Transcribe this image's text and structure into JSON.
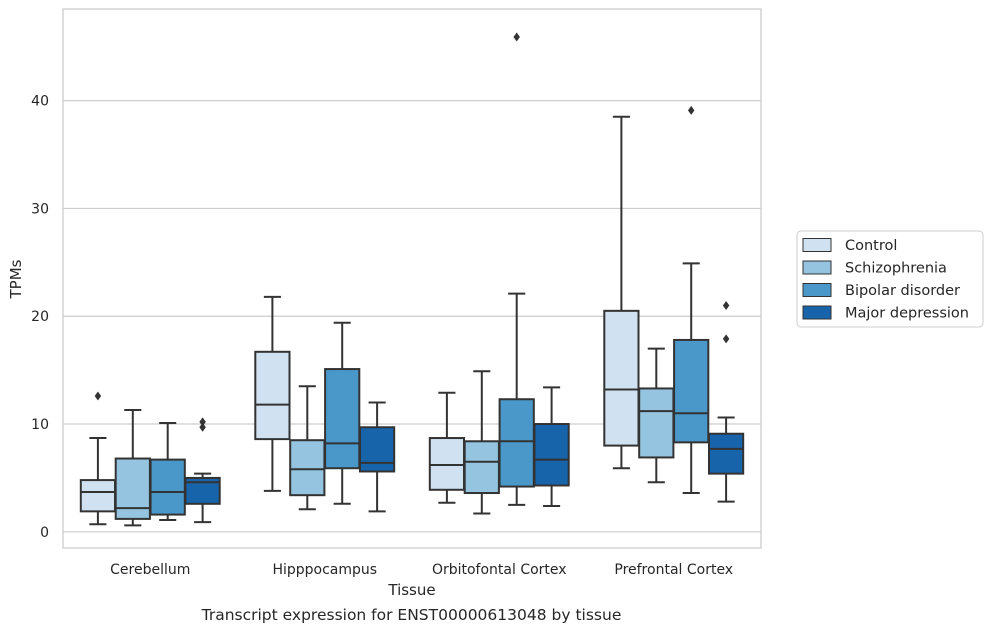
{
  "caption": "Transcript expression for ENST00000613048 by tissue",
  "colors": {
    "Control": "#d0e1f2",
    "Schizophrenia": "#94c4df",
    "Bipolar disorder": "#4a98c9",
    "Major depression": "#1764ab",
    "stroke": "#333333",
    "grid": "#cccccc"
  },
  "chart_data": {
    "type": "box",
    "xlabel": "Tissue",
    "ylabel": "TPMs",
    "ylim": [
      -1.5,
      48.5
    ],
    "yticks": [
      0,
      10,
      20,
      30,
      40
    ],
    "grid": "horizontal",
    "legend_placement": "right-outside",
    "categories": [
      "Cerebellum",
      "Hipppocampus",
      "Orbitofontal Cortex",
      "Prefrontal Cortex"
    ],
    "series": [
      {
        "name": "Control",
        "boxes": [
          {
            "whislo": 0.7,
            "q1": 1.9,
            "med": 3.7,
            "q3": 4.8,
            "whishi": 8.7,
            "fliers": [
              12.6
            ]
          },
          {
            "whislo": 3.8,
            "q1": 8.6,
            "med": 11.8,
            "q3": 16.7,
            "whishi": 21.8,
            "fliers": []
          },
          {
            "whislo": 2.7,
            "q1": 3.9,
            "med": 6.2,
            "q3": 8.7,
            "whishi": 12.9,
            "fliers": []
          },
          {
            "whislo": 5.9,
            "q1": 8.0,
            "med": 13.2,
            "q3": 20.5,
            "whishi": 38.5,
            "fliers": []
          }
        ]
      },
      {
        "name": "Schizophrenia",
        "boxes": [
          {
            "whislo": 0.6,
            "q1": 1.2,
            "med": 2.2,
            "q3": 6.8,
            "whishi": 11.3,
            "fliers": []
          },
          {
            "whislo": 2.1,
            "q1": 3.4,
            "med": 5.8,
            "q3": 8.5,
            "whishi": 13.5,
            "fliers": []
          },
          {
            "whislo": 1.7,
            "q1": 3.6,
            "med": 6.5,
            "q3": 8.4,
            "whishi": 14.9,
            "fliers": []
          },
          {
            "whislo": 4.6,
            "q1": 6.9,
            "med": 11.2,
            "q3": 13.3,
            "whishi": 17.0,
            "fliers": []
          }
        ]
      },
      {
        "name": "Bipolar disorder",
        "boxes": [
          {
            "whislo": 1.1,
            "q1": 1.6,
            "med": 3.7,
            "q3": 6.7,
            "whishi": 10.1,
            "fliers": []
          },
          {
            "whislo": 2.6,
            "q1": 5.9,
            "med": 8.2,
            "q3": 15.1,
            "whishi": 19.4,
            "fliers": []
          },
          {
            "whislo": 2.5,
            "q1": 4.2,
            "med": 8.4,
            "q3": 12.3,
            "whishi": 22.1,
            "fliers": [
              45.9
            ]
          },
          {
            "whislo": 3.6,
            "q1": 8.3,
            "med": 11.0,
            "q3": 17.8,
            "whishi": 24.9,
            "fliers": [
              39.1
            ]
          }
        ]
      },
      {
        "name": "Major depression",
        "boxes": [
          {
            "whislo": 0.9,
            "q1": 2.6,
            "med": 4.6,
            "q3": 5.0,
            "whishi": 5.4,
            "fliers": [
              9.7,
              10.2
            ]
          },
          {
            "whislo": 1.9,
            "q1": 5.6,
            "med": 6.4,
            "q3": 9.7,
            "whishi": 12.0,
            "fliers": []
          },
          {
            "whislo": 2.4,
            "q1": 4.3,
            "med": 6.7,
            "q3": 10.0,
            "whishi": 13.4,
            "fliers": []
          },
          {
            "whislo": 2.8,
            "q1": 5.4,
            "med": 7.7,
            "q3": 9.1,
            "whishi": 10.6,
            "fliers": [
              17.9,
              21.0
            ]
          }
        ]
      }
    ]
  }
}
